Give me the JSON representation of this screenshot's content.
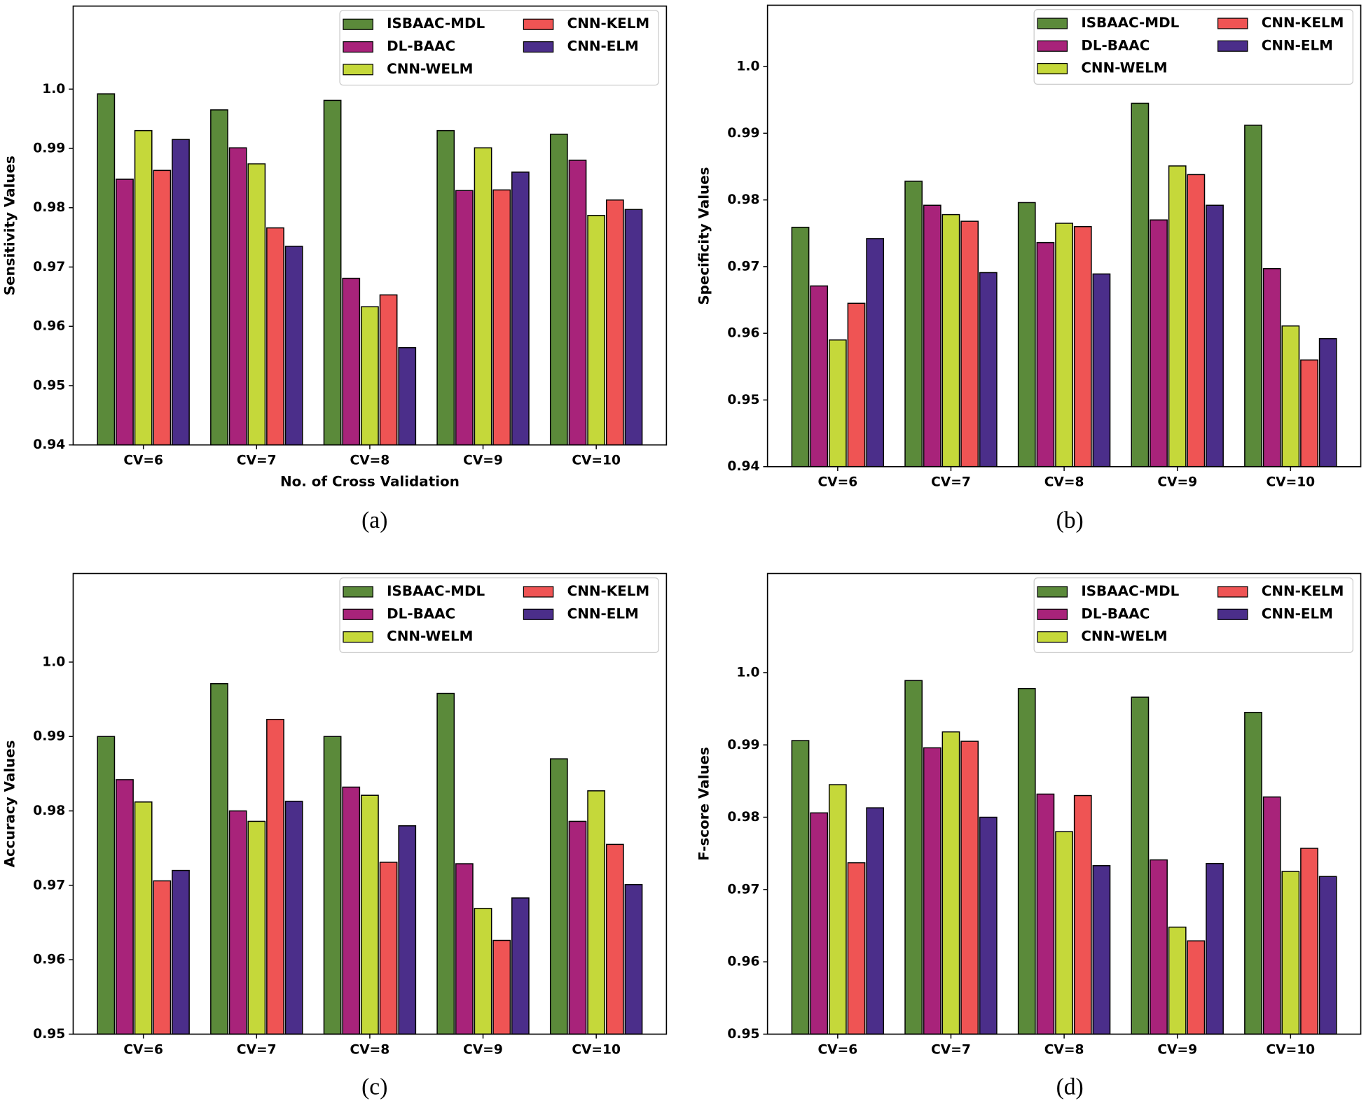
{
  "chart_data": [
    {
      "type": "bar",
      "caption": "(a)",
      "ylabel": "Sensitivity Values",
      "xlabel": "No. of Cross Validation",
      "categories": [
        "CV=6",
        "CV=7",
        "CV=8",
        "CV=9",
        "CV=10"
      ],
      "ylim": [
        0.94,
        1.014
      ],
      "yticks": [
        0.94,
        0.95,
        0.96,
        0.97,
        0.98,
        0.99,
        {
          "value": 1,
          "label": "1.0"
        }
      ],
      "legend_loc": "upper right",
      "series": [
        {
          "name": "ISBAAC-MDL",
          "color": "#5b8a3a",
          "values": [
            0.9992,
            0.9965,
            0.9981,
            0.993,
            0.9924
          ]
        },
        {
          "name": "DL-BAAC",
          "color": "#a8237a",
          "values": [
            0.9848,
            0.9901,
            0.9681,
            0.9829,
            0.988
          ]
        },
        {
          "name": "CNN-WELM",
          "color": "#c5d83a",
          "values": [
            0.993,
            0.9874,
            0.9633,
            0.9901,
            0.9787
          ]
        },
        {
          "name": "CNN-KELM",
          "color": "#ef5454",
          "values": [
            0.9863,
            0.9766,
            0.9653,
            0.983,
            0.9813
          ]
        },
        {
          "name": "CNN-ELM",
          "color": "#4b2e8a",
          "values": [
            0.9915,
            0.9735,
            0.9564,
            0.986,
            0.9797
          ]
        }
      ]
    },
    {
      "type": "bar",
      "caption": "(b)",
      "ylabel": "Specificity Values",
      "categories": [
        "CV=6",
        "CV=7",
        "CV=8",
        "CV=9",
        "CV=10"
      ],
      "ylim": [
        0.94,
        1.0092
      ],
      "yticks": [
        0.94,
        0.95,
        0.96,
        0.97,
        0.98,
        0.99,
        {
          "value": 1,
          "label": "1.0"
        }
      ],
      "legend_loc": "upper right",
      "series": [
        {
          "name": "ISBAAC-MDL",
          "color": "#5b8a3a",
          "values": [
            0.9759,
            0.9828,
            0.9796,
            0.9945,
            0.9912
          ]
        },
        {
          "name": "DL-BAAC",
          "color": "#a8237a",
          "values": [
            0.9671,
            0.9792,
            0.9736,
            0.977,
            0.9697
          ]
        },
        {
          "name": "CNN-WELM",
          "color": "#c5d83a",
          "values": [
            0.959,
            0.9778,
            0.9765,
            0.9851,
            0.9611
          ]
        },
        {
          "name": "CNN-KELM",
          "color": "#ef5454",
          "values": [
            0.9645,
            0.9768,
            0.976,
            0.9838,
            0.956
          ]
        },
        {
          "name": "CNN-ELM",
          "color": "#4b2e8a",
          "values": [
            0.9742,
            0.9691,
            0.9689,
            0.9792,
            0.9592
          ]
        }
      ]
    },
    {
      "type": "bar",
      "caption": "(c)",
      "ylabel": "Accuracy Values",
      "categories": [
        "CV=6",
        "CV=7",
        "CV=8",
        "CV=9",
        "CV=10"
      ],
      "ylim": [
        0.95,
        1.0119
      ],
      "yticks": [
        0.95,
        0.96,
        0.97,
        0.98,
        0.99,
        {
          "value": 1,
          "label": "1.0"
        }
      ],
      "legend_loc": "upper right",
      "series": [
        {
          "name": "ISBAAC-MDL",
          "color": "#5b8a3a",
          "values": [
            0.99,
            0.9971,
            0.99,
            0.9958,
            0.987
          ]
        },
        {
          "name": "DL-BAAC",
          "color": "#a8237a",
          "values": [
            0.9842,
            0.98,
            0.9832,
            0.9729,
            0.9786
          ]
        },
        {
          "name": "CNN-WELM",
          "color": "#c5d83a",
          "values": [
            0.9812,
            0.9786,
            0.9821,
            0.9669,
            0.9827
          ]
        },
        {
          "name": "CNN-KELM",
          "color": "#ef5454",
          "values": [
            0.9706,
            0.9923,
            0.9731,
            0.9626,
            0.9755
          ]
        },
        {
          "name": "CNN-ELM",
          "color": "#4b2e8a",
          "values": [
            0.972,
            0.9813,
            0.978,
            0.9683,
            0.9701
          ]
        }
      ]
    },
    {
      "type": "bar",
      "caption": "(d)",
      "ylabel": "F-score Values",
      "categories": [
        "CV=6",
        "CV=7",
        "CV=8",
        "CV=9",
        "CV=10"
      ],
      "ylim": [
        0.95,
        1.0137
      ],
      "yticks": [
        0.95,
        0.96,
        0.97,
        0.98,
        0.99,
        {
          "value": 1,
          "label": "1.0"
        }
      ],
      "legend_loc": "upper right",
      "series": [
        {
          "name": "ISBAAC-MDL",
          "color": "#5b8a3a",
          "values": [
            0.9906,
            0.9989,
            0.9978,
            0.9966,
            0.9945
          ]
        },
        {
          "name": "DL-BAAC",
          "color": "#a8237a",
          "values": [
            0.9806,
            0.9896,
            0.9832,
            0.9741,
            0.9828
          ]
        },
        {
          "name": "CNN-WELM",
          "color": "#c5d83a",
          "values": [
            0.9845,
            0.9918,
            0.978,
            0.9648,
            0.9725
          ]
        },
        {
          "name": "CNN-KELM",
          "color": "#ef5454",
          "values": [
            0.9737,
            0.9905,
            0.983,
            0.9629,
            0.9757
          ]
        },
        {
          "name": "CNN-ELM",
          "color": "#4b2e8a",
          "values": [
            0.9813,
            0.98,
            0.9733,
            0.9736,
            0.9718
          ]
        }
      ]
    }
  ]
}
